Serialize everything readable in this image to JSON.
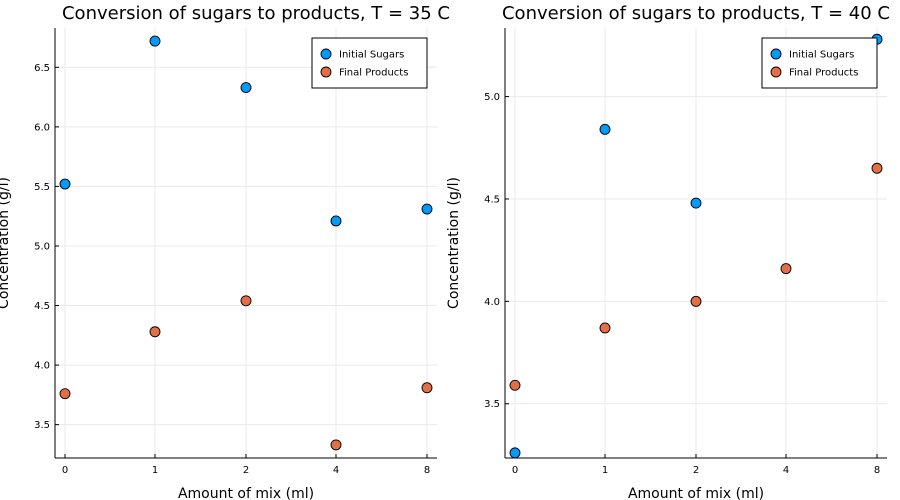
{
  "colors": {
    "initial_sugars": "#009AF9",
    "final_products": "#E26F46"
  },
  "chart_data": [
    {
      "type": "scatter",
      "title": "Conversion of sugars to products, T = 35 C",
      "xlabel": "Amount of mix (ml)",
      "ylabel": "Concentration (g/l)",
      "x_categories": [
        "0",
        "1",
        "2",
        "4",
        "8"
      ],
      "ylim": [
        3.22,
        6.83
      ],
      "yticks": [
        "3.5",
        "4.0",
        "4.5",
        "5.0",
        "5.5",
        "6.0",
        "6.5"
      ],
      "grid": true,
      "legend_position": "top-right",
      "series": [
        {
          "name": "Initial Sugars",
          "values": [
            5.52,
            6.72,
            6.33,
            5.21,
            5.31
          ]
        },
        {
          "name": "Final Products",
          "values": [
            3.76,
            4.28,
            4.54,
            3.33,
            3.81
          ]
        }
      ]
    },
    {
      "type": "scatter",
      "title": "Conversion of sugars to products, T = 40 C",
      "xlabel": "Amount of mix (ml)",
      "ylabel": "Concentration (g/l)",
      "x_categories": [
        "0",
        "1",
        "2",
        "4",
        "8"
      ],
      "ylim": [
        3.235,
        5.335
      ],
      "yticks": [
        "3.5",
        "4.0",
        "4.5",
        "5.0"
      ],
      "grid": true,
      "legend_position": "top-right",
      "series": [
        {
          "name": "Initial Sugars",
          "values": [
            3.26,
            4.84,
            4.48,
            null,
            5.28
          ]
        },
        {
          "name": "Final Products",
          "values": [
            3.59,
            3.87,
            4.0,
            4.16,
            4.65
          ]
        }
      ]
    }
  ]
}
